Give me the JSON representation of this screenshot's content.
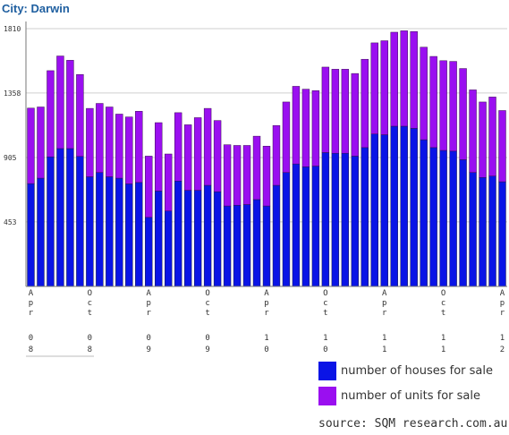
{
  "header": {
    "title": "City: Darwin"
  },
  "chart_data": {
    "type": "bar",
    "stacked": true,
    "ylim": [
      0,
      1810
    ],
    "yticks": [
      "1810",
      "1358",
      "905",
      "453"
    ],
    "x_tick_labels": [
      {
        "index": 0,
        "chars": [
          "A",
          "p",
          "r",
          "",
          "0",
          "8"
        ]
      },
      {
        "index": 6,
        "chars": [
          "O",
          "c",
          "t",
          "",
          "0",
          "8"
        ]
      },
      {
        "index": 12,
        "chars": [
          "A",
          "p",
          "r",
          "",
          "0",
          "9"
        ]
      },
      {
        "index": 18,
        "chars": [
          "O",
          "c",
          "t",
          "",
          "0",
          "9"
        ]
      },
      {
        "index": 24,
        "chars": [
          "A",
          "p",
          "r",
          "",
          "1",
          "0"
        ]
      },
      {
        "index": 30,
        "chars": [
          "O",
          "c",
          "t",
          "",
          "1",
          "0"
        ]
      },
      {
        "index": 36,
        "chars": [
          "A",
          "p",
          "r",
          "",
          "1",
          "1"
        ]
      },
      {
        "index": 42,
        "chars": [
          "O",
          "c",
          "t",
          "",
          "1",
          "1"
        ]
      },
      {
        "index": 48,
        "chars": [
          "A",
          "p",
          "r",
          "",
          "1",
          "2"
        ]
      }
    ],
    "series": [
      {
        "name": "number of houses for sale",
        "color": "#0a14e6",
        "values": [
          722,
          760,
          910,
          968,
          968,
          913,
          770,
          800,
          770,
          760,
          720,
          730,
          485,
          670,
          530,
          740,
          675,
          675,
          710,
          665,
          565,
          570,
          575,
          610,
          565,
          710,
          800,
          860,
          840,
          845,
          940,
          935,
          935,
          915,
          975,
          1070,
          1065,
          1125,
          1125,
          1110,
          1030,
          975,
          955,
          950,
          890,
          800,
          765,
          775,
          735
        ]
      },
      {
        "name": "number of units for sale",
        "color": "#9a0ff0",
        "values": [
          530,
          500,
          605,
          650,
          620,
          575,
          480,
          485,
          490,
          450,
          470,
          500,
          430,
          480,
          400,
          480,
          460,
          510,
          540,
          500,
          430,
          420,
          415,
          445,
          420,
          420,
          495,
          545,
          545,
          530,
          600,
          590,
          590,
          580,
          620,
          640,
          660,
          660,
          670,
          680,
          650,
          640,
          630,
          630,
          640,
          580,
          530,
          555,
          500
        ]
      }
    ]
  },
  "legend": {
    "houses_label": "number of houses for sale",
    "units_label": "number of units for sale"
  },
  "source_text": "source: SQM research.com.au"
}
